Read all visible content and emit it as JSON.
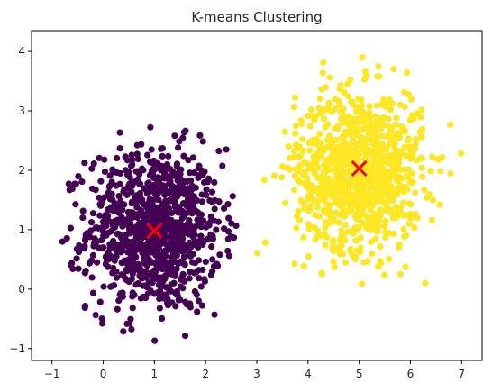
{
  "chart_data": {
    "type": "scatter",
    "title": "K-means Clustering",
    "xlabel": "",
    "ylabel": "",
    "xlim": [
      -1.4,
      7.4
    ],
    "ylim": [
      -1.2,
      4.35
    ],
    "xticks": [
      -1,
      0,
      1,
      2,
      3,
      4,
      5,
      6,
      7
    ],
    "yticks": [
      -1,
      0,
      1,
      2,
      3,
      4
    ],
    "grid": false,
    "legend": "none",
    "colors": {
      "cluster_0": "#440154",
      "cluster_1": "#fde725",
      "centroid": "#ff0000"
    },
    "clusters": [
      {
        "cluster": 0,
        "center": [
          1.0,
          1.0
        ],
        "spread": [
          0.65,
          0.68
        ],
        "count": 1000,
        "x_range": [
          -1.0,
          2.6
        ],
        "y_range": [
          -0.95,
          3.05
        ]
      },
      {
        "cluster": 1,
        "center": [
          5.0,
          2.0
        ],
        "spread": [
          0.62,
          0.66
        ],
        "count": 1000,
        "x_range": [
          2.9,
          7.0
        ],
        "y_range": [
          -0.42,
          4.12
        ]
      }
    ],
    "centroids": [
      {
        "x": 1.0,
        "y": 0.98
      },
      {
        "x": 5.0,
        "y": 2.03
      }
    ]
  }
}
